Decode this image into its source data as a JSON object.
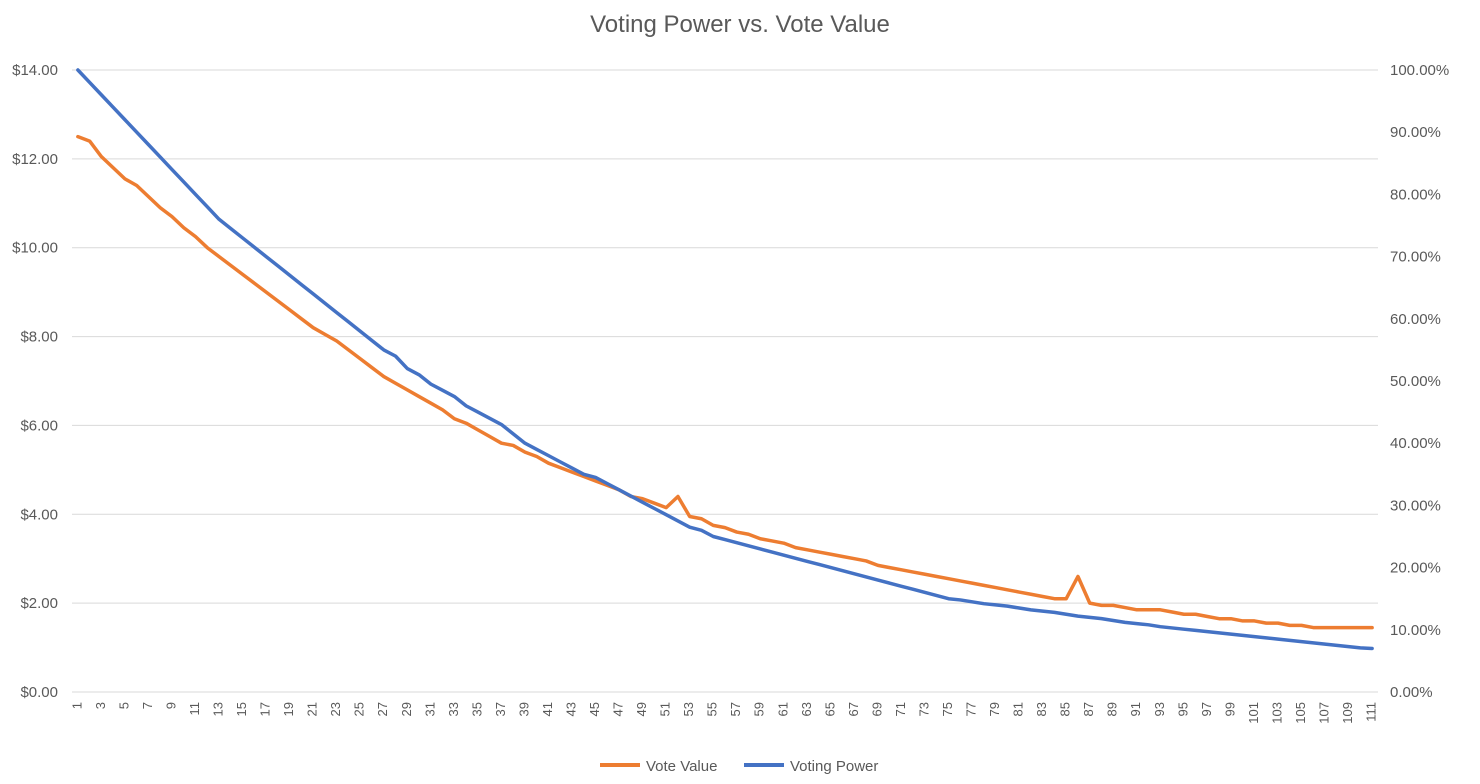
{
  "chart_data": {
    "type": "line",
    "title": "Voting Power vs. Vote Value",
    "xlabel": "",
    "ylabel": "",
    "grid": true,
    "legend_position": "bottom",
    "x_tick_labels": [
      "1",
      "3",
      "5",
      "7",
      "9",
      "11",
      "13",
      "15",
      "17",
      "19",
      "21",
      "23",
      "25",
      "27",
      "29",
      "31",
      "33",
      "35",
      "37",
      "39",
      "41",
      "43",
      "45",
      "47",
      "49",
      "51",
      "53",
      "55",
      "57",
      "59",
      "61",
      "63",
      "65",
      "67",
      "69",
      "71",
      "73",
      "75",
      "77",
      "79",
      "81",
      "83",
      "85",
      "87",
      "89",
      "91",
      "93",
      "95",
      "97",
      "99",
      "101",
      "103",
      "105",
      "107",
      "109",
      "111"
    ],
    "y_left": {
      "ylim": [
        0,
        14
      ],
      "ticks": [
        "$0.00",
        "$2.00",
        "$4.00",
        "$6.00",
        "$8.00",
        "$10.00",
        "$12.00",
        "$14.00"
      ]
    },
    "y_right": {
      "ylim": [
        0,
        100
      ],
      "ticks": [
        "0.00%",
        "10.00%",
        "20.00%",
        "30.00%",
        "40.00%",
        "50.00%",
        "60.00%",
        "70.00%",
        "80.00%",
        "90.00%",
        "100.00%"
      ]
    },
    "series": [
      {
        "name": "Vote Value",
        "axis": "left",
        "color": "#ED7D31",
        "values": [
          12.5,
          12.4,
          12.05,
          11.8,
          11.55,
          11.4,
          11.15,
          10.9,
          10.7,
          10.45,
          10.25,
          10.0,
          9.8,
          9.6,
          9.4,
          9.2,
          9.0,
          8.8,
          8.6,
          8.4,
          8.2,
          8.05,
          7.9,
          7.7,
          7.5,
          7.3,
          7.1,
          6.95,
          6.8,
          6.65,
          6.5,
          6.35,
          6.15,
          6.05,
          5.9,
          5.75,
          5.6,
          5.55,
          5.4,
          5.3,
          5.15,
          5.05,
          4.95,
          4.85,
          4.75,
          4.65,
          4.55,
          4.4,
          4.35,
          4.25,
          4.15,
          4.4,
          3.95,
          3.9,
          3.75,
          3.7,
          3.6,
          3.55,
          3.45,
          3.4,
          3.35,
          3.25,
          3.2,
          3.15,
          3.1,
          3.05,
          3.0,
          2.95,
          2.85,
          2.8,
          2.75,
          2.7,
          2.65,
          2.6,
          2.55,
          2.5,
          2.45,
          2.4,
          2.35,
          2.3,
          2.25,
          2.2,
          2.15,
          2.1,
          2.1,
          2.6,
          2.0,
          1.95,
          1.95,
          1.9,
          1.85,
          1.85,
          1.85,
          1.8,
          1.75,
          1.75,
          1.7,
          1.65,
          1.65,
          1.6,
          1.6,
          1.55,
          1.55,
          1.5,
          1.5,
          1.45,
          1.45,
          1.45,
          1.45,
          1.45,
          1.45
        ]
      },
      {
        "name": "Voting Power",
        "axis": "right",
        "color": "#4472C4",
        "values": [
          100,
          98,
          96,
          94,
          92,
          90,
          88,
          86,
          84,
          82,
          80,
          78,
          76,
          74.5,
          73,
          71.5,
          70,
          68.5,
          67,
          65.5,
          64,
          62.5,
          61,
          59.5,
          58,
          56.5,
          55,
          54,
          52,
          51,
          49.5,
          48.5,
          47.5,
          46,
          45,
          44,
          43,
          41.5,
          40,
          39,
          38,
          37,
          36,
          35,
          34.5,
          33.5,
          32.5,
          31.5,
          30.5,
          29.5,
          28.5,
          27.5,
          26.5,
          26,
          25,
          24.5,
          24,
          23.5,
          23,
          22.5,
          22,
          21.5,
          21,
          20.5,
          20,
          19.5,
          19,
          18.5,
          18,
          17.5,
          17,
          16.5,
          16,
          15.5,
          15,
          14.8,
          14.5,
          14.2,
          14,
          13.8,
          13.5,
          13.2,
          13,
          12.8,
          12.5,
          12.2,
          12,
          11.8,
          11.5,
          11.2,
          11,
          10.8,
          10.5,
          10.3,
          10.1,
          9.9,
          9.7,
          9.5,
          9.3,
          9.1,
          8.9,
          8.7,
          8.5,
          8.3,
          8.1,
          7.9,
          7.7,
          7.5,
          7.3,
          7.1,
          7.0
        ]
      }
    ]
  }
}
